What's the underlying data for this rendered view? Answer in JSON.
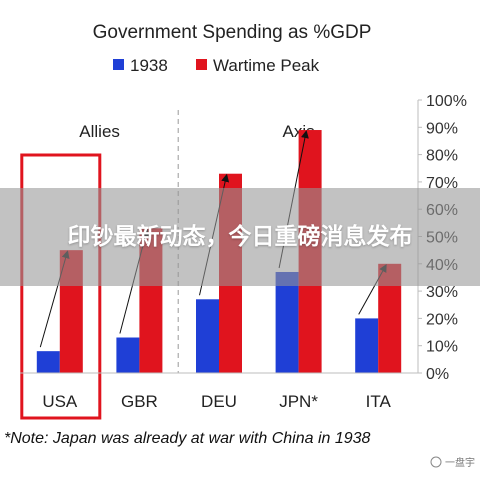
{
  "chart_data": {
    "type": "bar",
    "title": "Government Spending as %GDP",
    "categories": [
      "USA",
      "GBR",
      "DEU",
      "JPN*",
      "ITA"
    ],
    "series": [
      {
        "name": "1938",
        "values": [
          8,
          13,
          27,
          37,
          20
        ],
        "color": "#1f3fd6"
      },
      {
        "name": "Wartime Peak",
        "values": [
          45,
          53,
          73,
          89,
          40
        ],
        "color": "#e0141e"
      }
    ],
    "ylim": [
      0,
      100
    ],
    "yticks": [
      "0%",
      "10%",
      "20%",
      "30%",
      "40%",
      "50%",
      "60%",
      "70%",
      "80%",
      "90%",
      "100%"
    ],
    "y_axis_side": "right",
    "grid": false,
    "legend": "top-center",
    "groups": [
      {
        "label": "Allies",
        "categories": [
          "USA",
          "GBR"
        ]
      },
      {
        "label": "Axis",
        "categories": [
          "DEU",
          "JPN*",
          "ITA"
        ]
      }
    ],
    "highlight": {
      "category": "USA",
      "color": "#e0141e"
    },
    "arrows": "from top of 1938 bar to top of Wartime Peak bar",
    "note": "*Note: Japan was already at war with China in 1938"
  },
  "banner": {
    "text": "印钞最新动态，今日重磅消息发布"
  },
  "watermark": {
    "text": "一盘宇"
  },
  "colors": {
    "accent": "#e0141e",
    "secondary": "#1f3fd6"
  }
}
